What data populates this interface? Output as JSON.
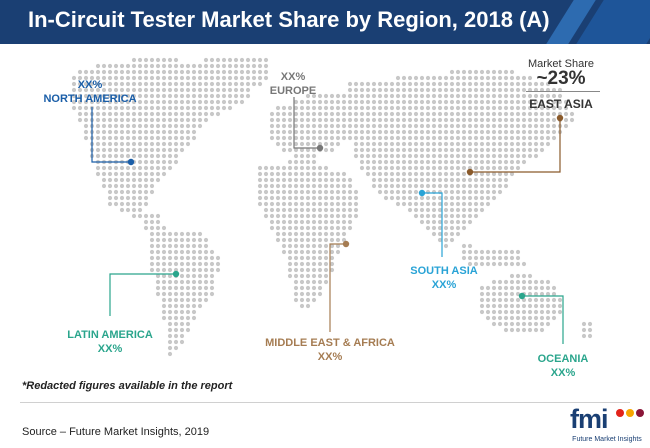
{
  "header": {
    "title": "In-Circuit Tester Market Share by Region, 2018 (A)",
    "colors": {
      "background": "#1a3f73",
      "stripe_1": "#2d6bb0",
      "stripe_2": "#1e5599"
    }
  },
  "map": {
    "dot_color": "#c8c8c8",
    "regions": [
      {
        "id": "north_america",
        "value": "XX%",
        "name": "NORTH AMERICA",
        "color": "#1a5ea8"
      },
      {
        "id": "europe",
        "value": "XX%",
        "name": "EUROPE",
        "color": "#777777"
      },
      {
        "id": "east_asia",
        "value": "~23%",
        "name": "EAST ASIA",
        "color": "#8a5a2b"
      },
      {
        "id": "latin_america",
        "value": "XX%",
        "name": "LATIN AMERICA",
        "color": "#2aa58c"
      },
      {
        "id": "middle_east_africa",
        "value": "XX%",
        "name": "MIDDLE EAST & AFRICA",
        "color": "#a57c52"
      },
      {
        "id": "south_asia",
        "value": "XX%",
        "name": "SOUTH ASIA",
        "color": "#29a3d6"
      },
      {
        "id": "oceania",
        "value": "XX%",
        "name": "OCEANIA",
        "color": "#2aa58c"
      }
    ],
    "highlight": {
      "label": "Market Share",
      "value": "~23%",
      "region": "EAST ASIA"
    }
  },
  "footer": {
    "note": "*Redacted figures available in the report",
    "source": "Source – Future Market Insights, 2019"
  },
  "logo": {
    "mark": "fmi",
    "text": "Future Market Insights",
    "dot_colors": [
      "#e2231a",
      "#f7a600",
      "#8a1538"
    ]
  }
}
